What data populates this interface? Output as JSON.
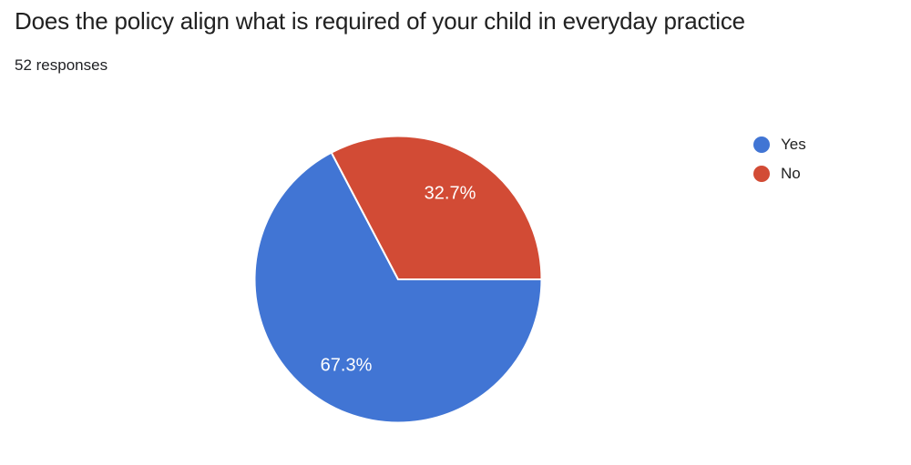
{
  "header": {
    "title": "Does the policy align what is required of your child in everyday practice",
    "responses": "52 responses"
  },
  "chart_data": {
    "type": "pie",
    "title": "Does the policy align what is required of your child in everyday practice",
    "subtitle": "52 responses",
    "total_responses": 52,
    "categories": [
      "Yes",
      "No"
    ],
    "values": [
      67.3,
      32.7
    ],
    "value_labels": [
      "67.3%",
      "32.7%"
    ],
    "colors": [
      "#4175d4",
      "#d24b35"
    ],
    "slice_label_color": "#ffffff",
    "slice_separator_color": "#ffffff",
    "legend_position": "right",
    "start_angle_deg": 0,
    "clockwise": true
  }
}
